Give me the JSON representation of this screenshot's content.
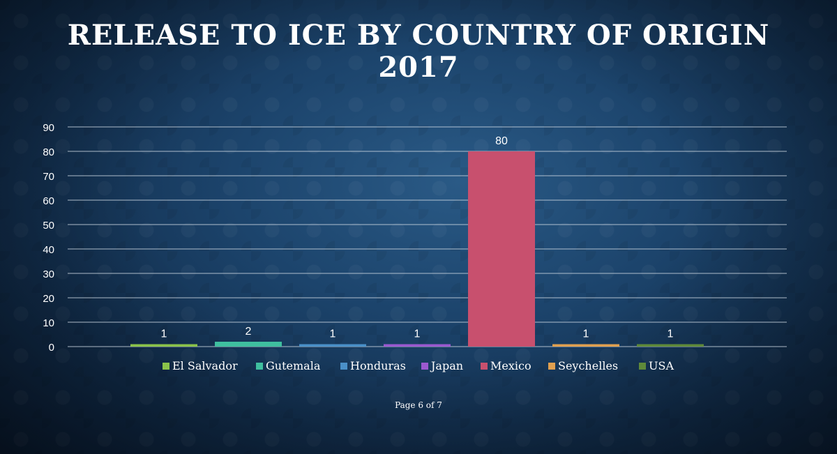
{
  "slide": {
    "title_line1": "RELEASE TO ICE BY COUNTRY OF ORIGIN",
    "title_line2": "2017",
    "page_label": "Page 6 of 7"
  },
  "chart_data": {
    "type": "bar",
    "categories": [
      "El Salvador",
      "Gutemala",
      "Honduras",
      "Japan",
      "Mexico",
      "Seychelles",
      "USA"
    ],
    "values": [
      1,
      2,
      1,
      1,
      80,
      1,
      1
    ],
    "colors": [
      "#8bc34a",
      "#3fbf9f",
      "#4a90c8",
      "#9b59d0",
      "#c8506e",
      "#e0a050",
      "#5f8a3a"
    ],
    "y_ticks": [
      0,
      10,
      20,
      30,
      40,
      50,
      60,
      70,
      80,
      90
    ],
    "ylim": [
      0,
      90
    ],
    "grid": true,
    "legend_position": "bottom",
    "data_labels": true
  }
}
